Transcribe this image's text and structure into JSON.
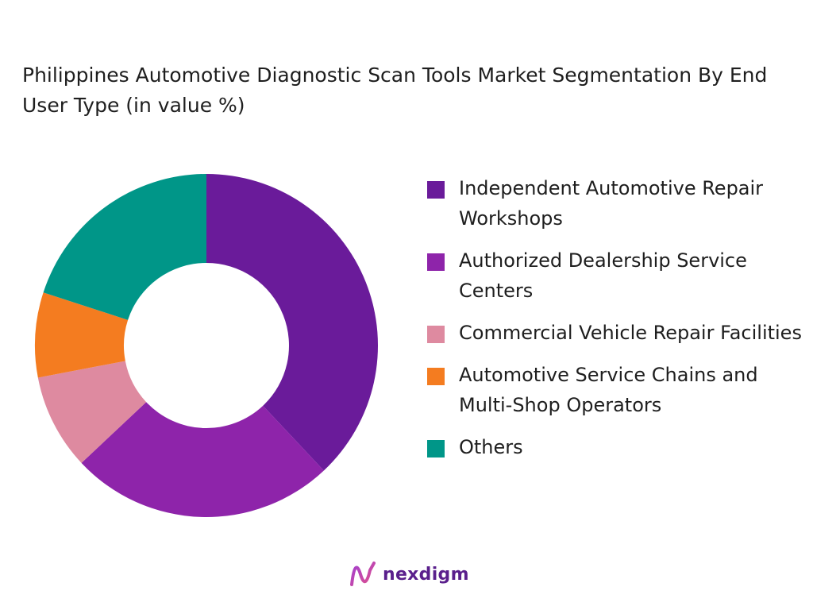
{
  "chart_data": {
    "type": "pie",
    "title": "Philippines Automotive Diagnostic Scan Tools Market Segmentation By End User Type (in value %)",
    "donut": true,
    "legend_position": "right",
    "categories": [
      "Independent Automotive Repair Workshops",
      "Authorized Dealership Service Centers",
      "Commercial Vehicle Repair Facilities",
      "Automotive Service Chains and Multi-Shop Operators",
      "Others"
    ],
    "values": [
      38,
      25,
      9,
      8,
      20
    ],
    "colors": [
      "#6a1b9a",
      "#8e24aa",
      "#de8aa0",
      "#f47c20",
      "#009688"
    ]
  },
  "brand": {
    "name": "nexdigm",
    "logo_icon": "nexdigm-wave-logo"
  }
}
